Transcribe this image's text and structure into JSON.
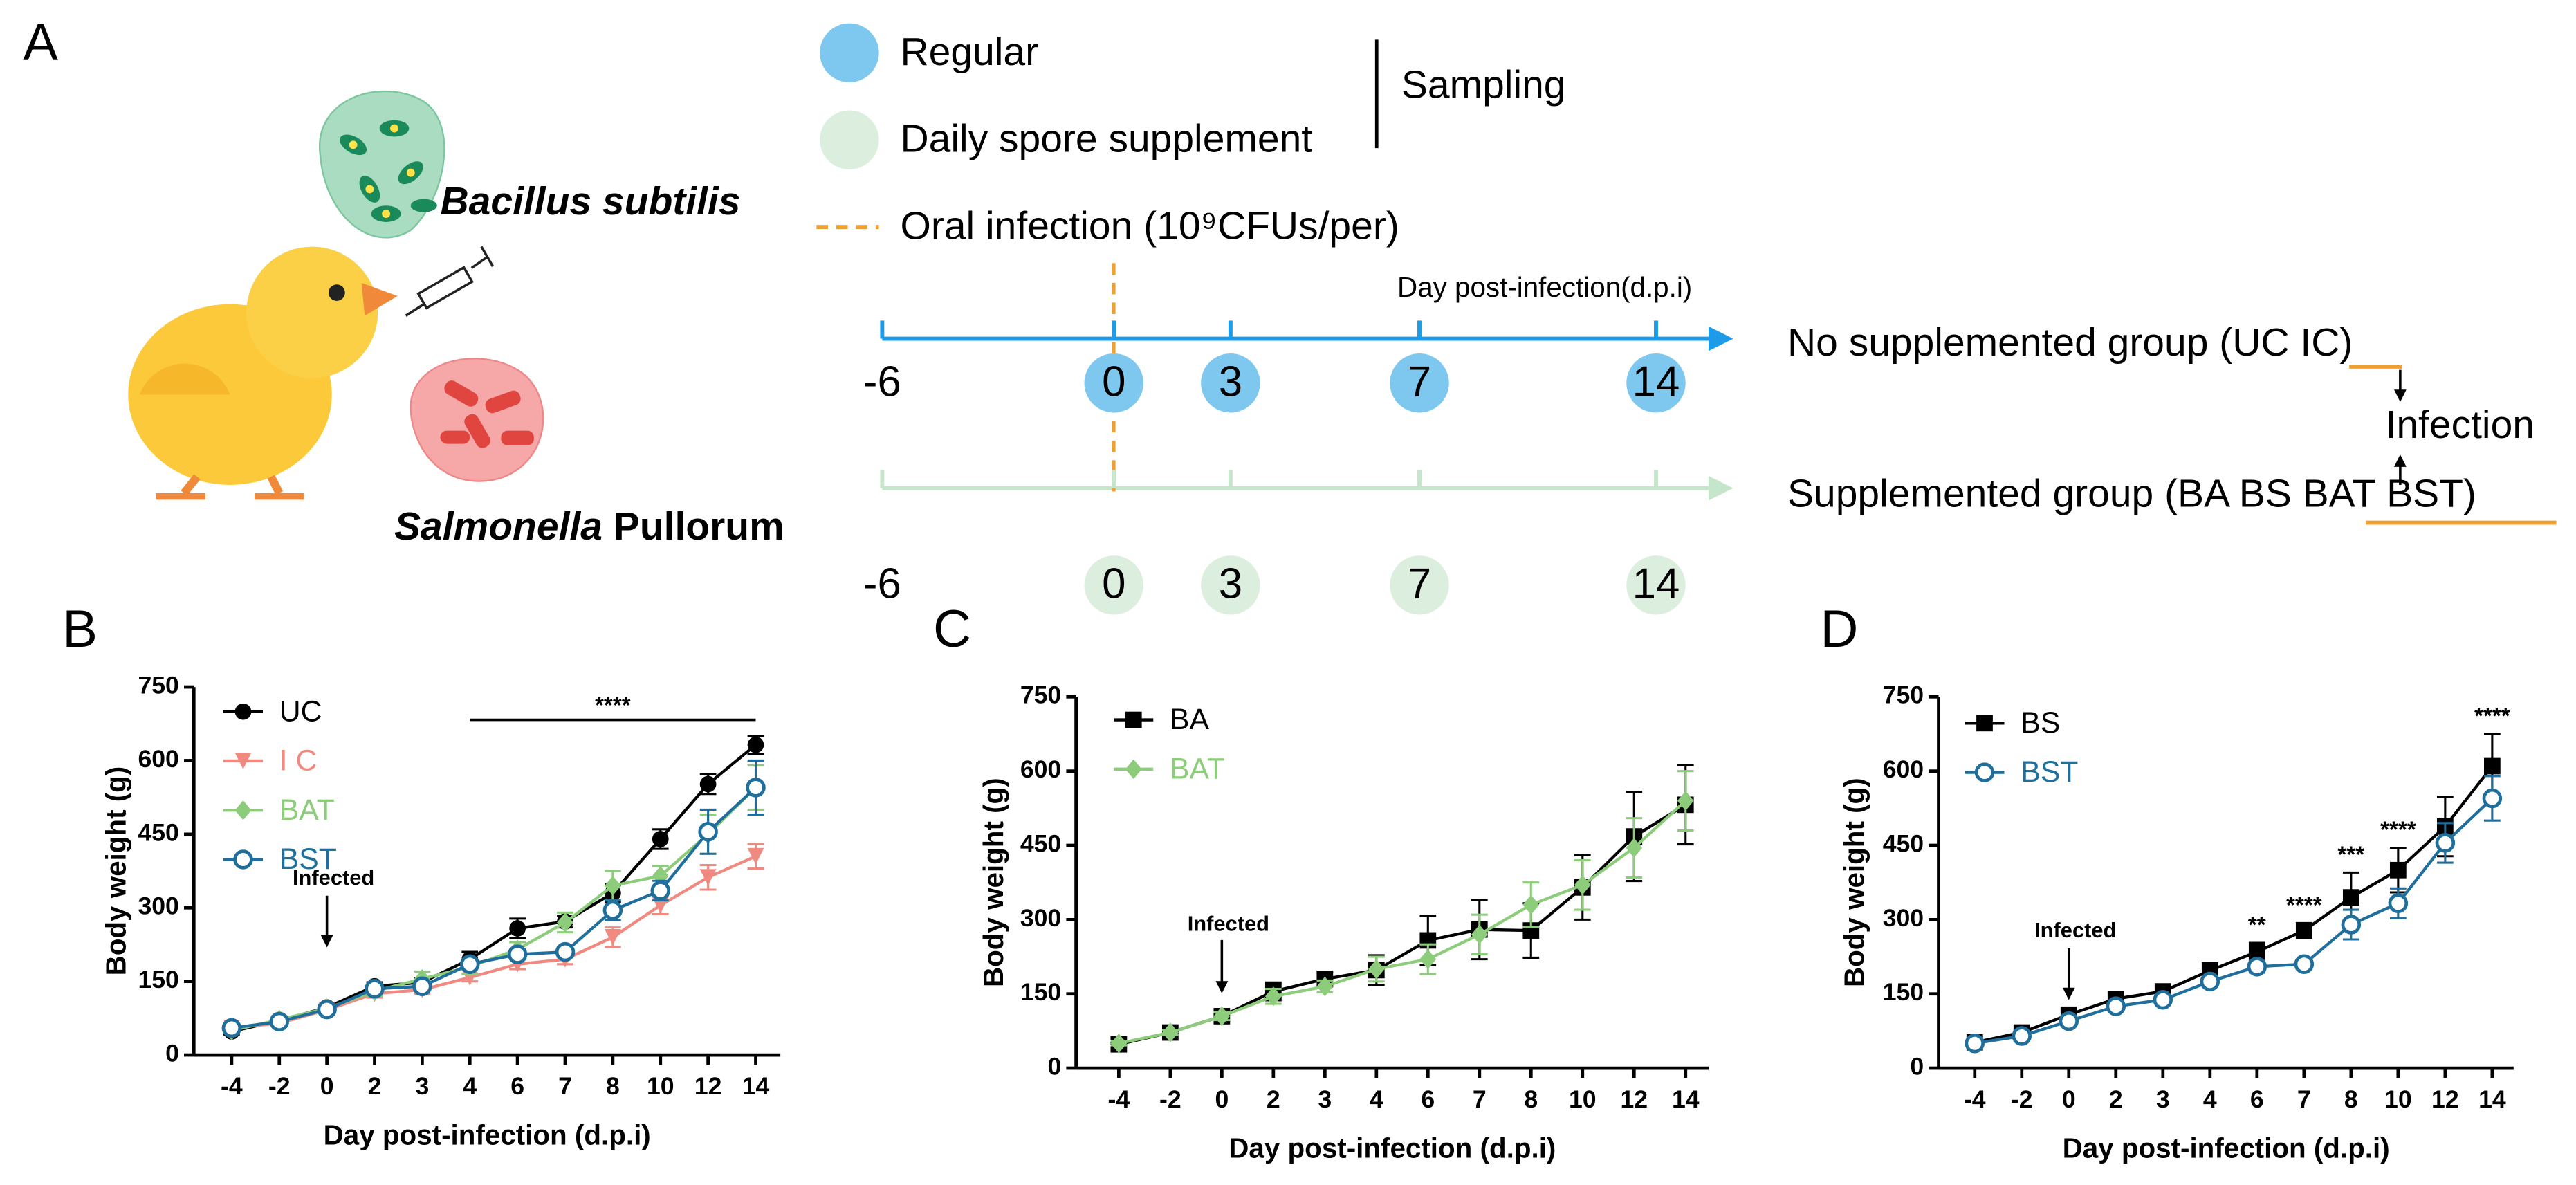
{
  "panel_a": {
    "label": "A",
    "bacteria": {
      "name": "Bacillus subtilis"
    },
    "pathogen": {
      "genus": "Salmonella",
      "name": "Pullorum"
    },
    "legend": {
      "regular": "Regular",
      "supplement": "Daily spore supplement",
      "sampling": "Sampling",
      "infection": "Oral infection (10⁹CFUs/per)"
    },
    "timeline": {
      "axis_label": "Day post-infection(d.p.i)",
      "ticks": [
        -6,
        0,
        3,
        7,
        14
      ],
      "top_group": "No supplemented group (UC IC)",
      "bottom_group": "Supplemented group (BA BS BAT BST)",
      "infection": "Infection"
    }
  },
  "chart_data": [
    {
      "type": "line",
      "label": "B",
      "xlabel": "Day post-infection (d.p.i)",
      "ylabel": "Body weight (g)",
      "categories": [
        "-4",
        "-2",
        "0",
        "2",
        "3",
        "4",
        "6",
        "7",
        "8",
        "10",
        "12",
        "14"
      ],
      "ylim": [
        0,
        750
      ],
      "yticks": [
        0,
        150,
        300,
        450,
        600,
        750
      ],
      "series": [
        {
          "name": "UC",
          "color": "#000000",
          "marker": "circle",
          "values": [
            48,
            70,
            97,
            140,
            148,
            195,
            258,
            272,
            330,
            440,
            552,
            632
          ],
          "errors": [
            6,
            5,
            6,
            8,
            8,
            15,
            20,
            12,
            18,
            20,
            20,
            18
          ]
        },
        {
          "name": "I C",
          "color": "#f08a80",
          "marker": "triangle-down",
          "values": [
            55,
            65,
            92,
            125,
            133,
            158,
            185,
            195,
            240,
            305,
            362,
            405
          ],
          "errors": [
            5,
            5,
            5,
            8,
            8,
            8,
            10,
            10,
            20,
            18,
            25,
            25
          ]
        },
        {
          "name": "BAT",
          "color": "#8ccc7a",
          "marker": "diamond",
          "values": [
            50,
            72,
            95,
            130,
            155,
            180,
            215,
            270,
            345,
            365,
            450,
            545
          ],
          "errors": [
            5,
            5,
            6,
            10,
            15,
            15,
            15,
            20,
            30,
            20,
            40,
            45
          ]
        },
        {
          "name": "BST",
          "color": "#1f6e9c",
          "marker": "open-circle",
          "values": [
            55,
            68,
            93,
            135,
            140,
            185,
            205,
            210,
            295,
            335,
            455,
            545
          ],
          "errors": [
            5,
            5,
            5,
            8,
            8,
            10,
            10,
            10,
            20,
            20,
            45,
            55
          ]
        }
      ],
      "annotations": [
        {
          "text": "Infected",
          "x": "0",
          "arrow": true
        },
        {
          "text": "****",
          "from": "4",
          "to": "14"
        }
      ]
    },
    {
      "type": "line",
      "label": "C",
      "xlabel": "Day post-infection (d.p.i)",
      "ylabel": "Body weight (g)",
      "categories": [
        "-4",
        "-2",
        "0",
        "2",
        "3",
        "4",
        "6",
        "7",
        "8",
        "10",
        "12",
        "14"
      ],
      "ylim": [
        0,
        750
      ],
      "yticks": [
        0,
        150,
        300,
        450,
        600,
        750
      ],
      "series": [
        {
          "name": "BA",
          "color": "#000000",
          "marker": "square",
          "values": [
            48,
            72,
            105,
            155,
            180,
            198,
            258,
            280,
            278,
            365,
            468,
            532
          ],
          "errors": [
            4,
            5,
            10,
            18,
            15,
            30,
            50,
            60,
            55,
            65,
            90,
            80
          ]
        },
        {
          "name": "BAT",
          "color": "#8ccc7a",
          "marker": "diamond",
          "values": [
            50,
            72,
            105,
            145,
            165,
            200,
            220,
            270,
            330,
            370,
            445,
            540
          ],
          "errors": [
            4,
            5,
            8,
            15,
            12,
            25,
            30,
            40,
            45,
            50,
            60,
            60
          ]
        }
      ],
      "annotations": [
        {
          "text": "Infected",
          "x": "0",
          "arrow": true
        }
      ]
    },
    {
      "type": "line",
      "label": "D",
      "xlabel": "Day post-infection (d.p.i)",
      "ylabel": "Body weight (g)",
      "categories": [
        "-4",
        "-2",
        "0",
        "2",
        "3",
        "4",
        "6",
        "7",
        "8",
        "10",
        "12",
        "14"
      ],
      "ylim": [
        0,
        750
      ],
      "yticks": [
        0,
        150,
        300,
        450,
        600,
        750
      ],
      "series": [
        {
          "name": "BS",
          "color": "#000000",
          "marker": "square",
          "values": [
            52,
            72,
            108,
            140,
            155,
            197,
            235,
            278,
            345,
            400,
            488,
            610
          ],
          "errors": [
            5,
            5,
            12,
            12,
            12,
            15,
            18,
            15,
            50,
            45,
            60,
            65
          ]
        },
        {
          "name": "BST",
          "color": "#1f6e9c",
          "marker": "open-circle",
          "values": [
            50,
            65,
            95,
            125,
            138,
            175,
            205,
            210,
            290,
            333,
            455,
            545
          ],
          "errors": [
            5,
            5,
            8,
            8,
            8,
            10,
            12,
            10,
            30,
            30,
            40,
            45
          ]
        }
      ],
      "annotations": [
        {
          "text": "Infected",
          "x": "0",
          "arrow": true
        },
        {
          "text": "**",
          "x": "6"
        },
        {
          "text": "****",
          "x": "7"
        },
        {
          "text": "***",
          "x": "8"
        },
        {
          "text": "****",
          "x": "10"
        },
        {
          "text": "****",
          "x": "14"
        }
      ]
    }
  ]
}
